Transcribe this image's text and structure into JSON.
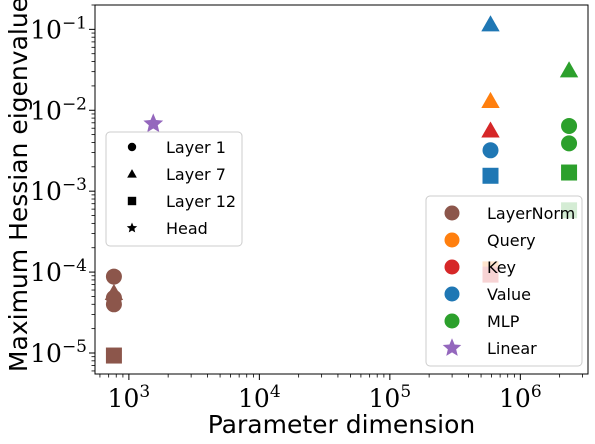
{
  "chart_data": {
    "type": "scatter",
    "xlabel": "Parameter dimension",
    "ylabel": "Maximum Hessian eigenvalue",
    "xscale": "log",
    "yscale": "log",
    "xlim": [
      550,
      3300000
    ],
    "ylim": [
      5.5e-06,
      0.2
    ],
    "x_ticks": [
      {
        "value": 1000,
        "label": "10^3"
      },
      {
        "value": 10000,
        "label": "10^4"
      },
      {
        "value": 100000,
        "label": "10^5"
      },
      {
        "value": 1000000,
        "label": "10^6"
      }
    ],
    "y_ticks": [
      {
        "value": 1e-05,
        "label": "10^-5"
      },
      {
        "value": 0.0001,
        "label": "10^-4"
      },
      {
        "value": 0.001,
        "label": "10^-3"
      },
      {
        "value": 0.01,
        "label": "10^-2"
      },
      {
        "value": 0.1,
        "label": "10^-1"
      }
    ],
    "grid": false,
    "colors": {
      "LayerNorm": "#8c564b",
      "Query": "#ff7f0e",
      "Key": "#d62728",
      "Value": "#1f77b4",
      "MLP": "#2ca02c",
      "Linear": "#9467bd"
    },
    "legend_layers": {
      "placement": "center-left",
      "entries": [
        {
          "label": "Layer 1",
          "marker": "circle"
        },
        {
          "label": "Layer 7",
          "marker": "triangle"
        },
        {
          "label": "Layer 12",
          "marker": "square"
        },
        {
          "label": "Head",
          "marker": "star"
        }
      ]
    },
    "legend_modules": {
      "placement": "lower-right",
      "entries": [
        {
          "label": "LayerNorm",
          "marker": "circle"
        },
        {
          "label": "Query",
          "marker": "circle"
        },
        {
          "label": "Key",
          "marker": "circle"
        },
        {
          "label": "Value",
          "marker": "circle"
        },
        {
          "label": "MLP",
          "marker": "circle"
        },
        {
          "label": "Linear",
          "marker": "star"
        }
      ]
    },
    "points": [
      {
        "module": "LayerNorm",
        "layer": "Layer 1",
        "x": 768,
        "y": 8.8e-05
      },
      {
        "module": "LayerNorm",
        "layer": "Layer 7",
        "x": 768,
        "y": 5.5e-05
      },
      {
        "module": "LayerNorm",
        "layer": "Layer 1",
        "x": 768,
        "y": 4.8e-05
      },
      {
        "module": "LayerNorm",
        "layer": "Layer 1",
        "x": 768,
        "y": 4e-05
      },
      {
        "module": "LayerNorm",
        "layer": "Layer 12",
        "x": 768,
        "y": 9.3e-06
      },
      {
        "module": "Linear",
        "layer": "Head",
        "x": 1538,
        "y": 0.0068
      },
      {
        "module": "Value",
        "layer": "Layer 7",
        "x": 590592,
        "y": 0.115
      },
      {
        "module": "Query",
        "layer": "Layer 7",
        "x": 590592,
        "y": 0.013
      },
      {
        "module": "Key",
        "layer": "Layer 7",
        "x": 590592,
        "y": 0.0056
      },
      {
        "module": "Value",
        "layer": "Layer 1",
        "x": 590592,
        "y": 0.0032
      },
      {
        "module": "Value",
        "layer": "Layer 12",
        "x": 590592,
        "y": 0.00155
      },
      {
        "module": "Query",
        "layer": "Layer 12",
        "x": 590592,
        "y": 0.000108
      },
      {
        "module": "Key",
        "layer": "Layer 12",
        "x": 590592,
        "y": 9.3e-05
      },
      {
        "module": "MLP",
        "layer": "Layer 7",
        "x": 2362368,
        "y": 0.031
      },
      {
        "module": "MLP",
        "layer": "Layer 1",
        "x": 2362368,
        "y": 0.0064
      },
      {
        "module": "MLP",
        "layer": "Layer 1",
        "x": 2362368,
        "y": 0.0039
      },
      {
        "module": "MLP",
        "layer": "Layer 12",
        "x": 2362368,
        "y": 0.0017
      },
      {
        "module": "MLP",
        "layer": "Layer 12",
        "x": 2362368,
        "y": 0.00058
      }
    ]
  }
}
